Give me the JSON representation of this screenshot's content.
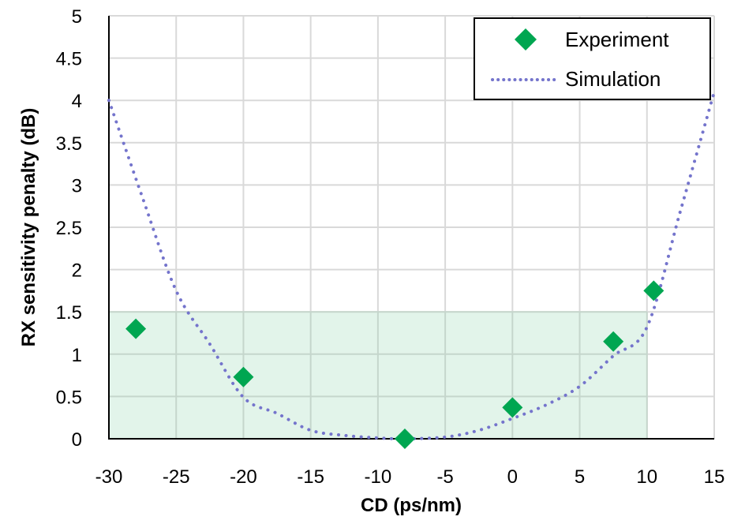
{
  "chart_data": {
    "type": "scatter",
    "xlabel": "CD (ps/nm)",
    "ylabel": "RX sensitivity penalty (dB)",
    "xlim": [
      -30,
      15
    ],
    "ylim": [
      0,
      5
    ],
    "xticks": [
      "-30",
      "-25",
      "-20",
      "-15",
      "-10",
      "-5",
      "0",
      "5",
      "10",
      "15"
    ],
    "yticks": [
      "0",
      "0.5",
      "1",
      "1.5",
      "2",
      "2.5",
      "3",
      "3.5",
      "4",
      "4.5",
      "5"
    ],
    "grid": true,
    "legend": "top-right",
    "shaded_region": {
      "x": [
        -30,
        10
      ],
      "y": [
        0,
        1.5
      ],
      "color": "#e2f4ea"
    },
    "series": [
      {
        "name": "Experiment",
        "type": "scatter",
        "marker": "diamond",
        "color": "#00a651",
        "x": [
          -28,
          -20,
          -8,
          0,
          7.5,
          10.5
        ],
        "y": [
          1.3,
          0.73,
          0,
          0.37,
          1.15,
          1.75
        ]
      },
      {
        "name": "Simulation",
        "type": "line",
        "style": "dotted",
        "color": "#7474cc",
        "x": [
          -30,
          -27.5,
          -25,
          -22.5,
          -20,
          -17.5,
          -15,
          -12.5,
          -10,
          -8,
          -5,
          -2.5,
          0,
          2.5,
          5,
          7.5,
          10,
          12.5,
          15
        ],
        "y": [
          4.0,
          2.85,
          1.75,
          1.12,
          0.49,
          0.3,
          0.1,
          0.04,
          0.01,
          0,
          0.02,
          0.1,
          0.24,
          0.4,
          0.62,
          0.98,
          1.32,
          2.7,
          4.1
        ]
      }
    ]
  }
}
